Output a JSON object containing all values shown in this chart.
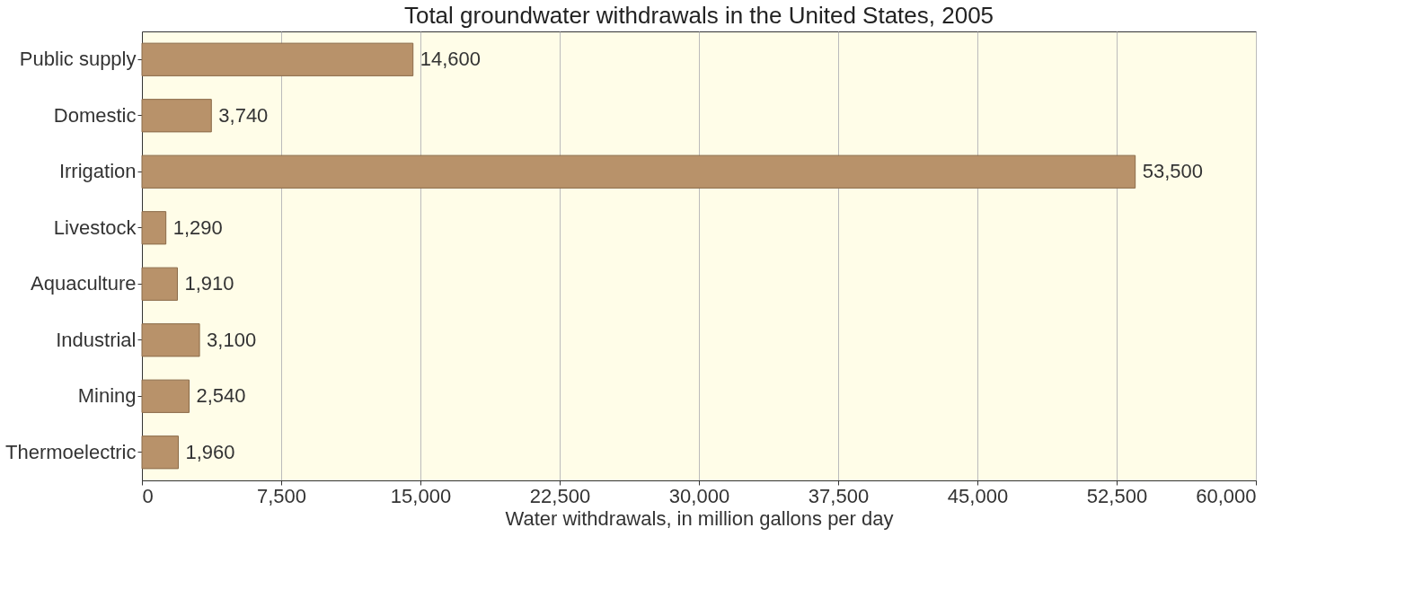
{
  "chart_data": {
    "type": "bar",
    "orientation": "horizontal",
    "title": "Total groundwater withdrawals in the United States, 2005",
    "xlabel": "Water withdrawals, in million gallons per day",
    "categories": [
      "Public supply",
      "Domestic",
      "Irrigation",
      "Livestock",
      "Aquaculture",
      "Industrial",
      "Mining",
      "Thermoelectric"
    ],
    "values": [
      14600,
      3740,
      53500,
      1290,
      1910,
      3100,
      2540,
      1960
    ],
    "value_labels": [
      "14,600",
      "3,740",
      "53,500",
      "1,290",
      "1,910",
      "3,100",
      "2,540",
      "1,960"
    ],
    "color": "#b8926a",
    "xlim": [
      0,
      60000
    ],
    "xticks": [
      0,
      {
        "value": 7500,
        "label": "7,500"
      },
      {
        "value": 15000,
        "label": "15,000"
      },
      {
        "value": 22500,
        "label": "22,500"
      },
      {
        "value": 30000,
        "label": "30,000"
      },
      {
        "value": 37500,
        "label": "37,500"
      },
      {
        "value": 45000,
        "label": "45,000"
      },
      {
        "value": 52500,
        "label": "52,500"
      },
      {
        "value": 60000,
        "label": "60,000"
      }
    ],
    "grid": "x"
  }
}
